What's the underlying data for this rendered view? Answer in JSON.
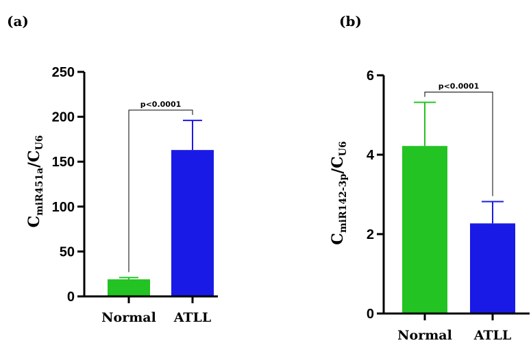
{
  "chart_data": [
    {
      "type": "bar",
      "panel_label": "(a)",
      "categories": [
        "Normal",
        "ATLL"
      ],
      "values": [
        19,
        163
      ],
      "errors": [
        2,
        33
      ],
      "colors": [
        "#22c322",
        "#1a1ae6"
      ],
      "ylabel": {
        "base1": "C",
        "sub1": "miR451a",
        "slash": "/",
        "base2": "C",
        "sub2": "U6"
      },
      "ylim": [
        0,
        250
      ],
      "yticks": [
        0,
        50,
        100,
        150,
        200,
        250
      ],
      "significance": {
        "label": "p<0.0001",
        "between": [
          "Normal",
          "ATLL"
        ]
      },
      "grid": false
    },
    {
      "type": "bar",
      "panel_label": "(b)",
      "categories": [
        "Normal",
        "ATLL"
      ],
      "values": [
        4.22,
        2.27
      ],
      "errors": [
        1.1,
        0.55
      ],
      "colors": [
        "#22c322",
        "#1a1ae6"
      ],
      "ylabel": {
        "base1": "C",
        "sub1": "miR142-3p",
        "slash": "/",
        "base2": "C",
        "sub2": "U6"
      },
      "ylim": [
        0,
        6
      ],
      "yticks": [
        0,
        2,
        4,
        6
      ],
      "significance": {
        "label": "p<0.0001",
        "between": [
          "Normal",
          "ATLL"
        ]
      },
      "grid": false
    }
  ]
}
